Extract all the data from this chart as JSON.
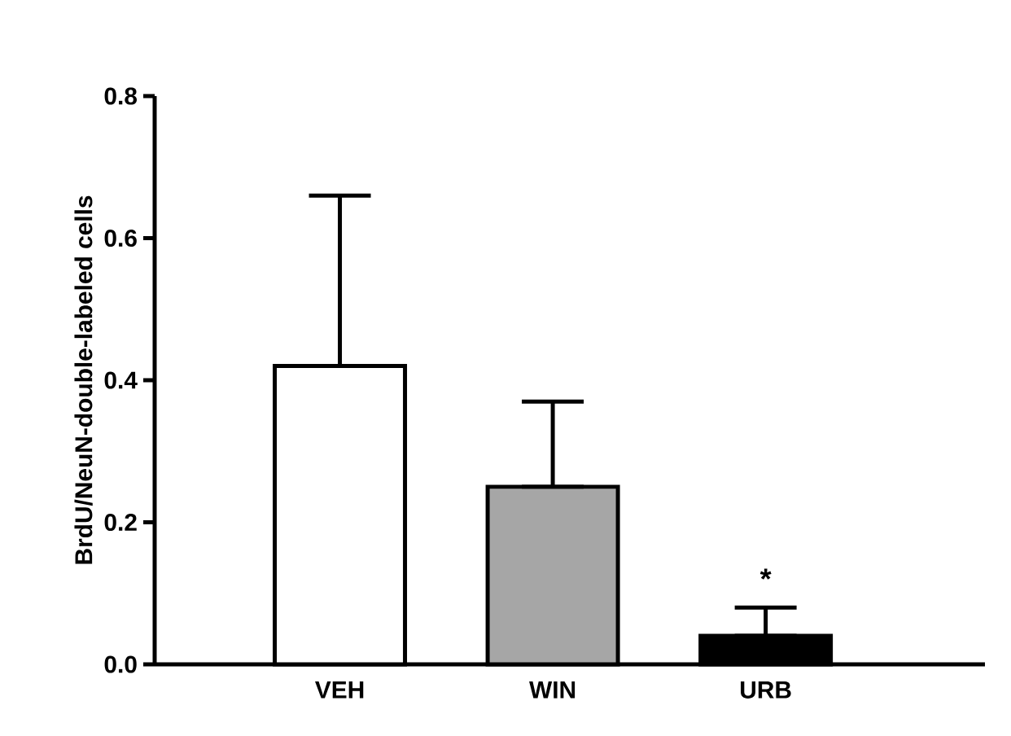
{
  "chart_data": {
    "type": "bar",
    "ylabel": "BrdU/NeuN-double-labeled cells",
    "categories": [
      "VEH",
      "WIN",
      "URB"
    ],
    "values": [
      0.42,
      0.25,
      0.04
    ],
    "colors": [
      "#ffffff",
      "#a6a6a6",
      "#000000"
    ],
    "errors": [
      [
        0.42,
        0.66
      ],
      [
        0.25,
        0.37
      ],
      [
        0.04,
        0.08
      ]
    ],
    "ylim": [
      0,
      0.8
    ],
    "yticks": [
      {
        "value": 0,
        "label": "0.0"
      },
      0.2,
      0.4,
      0.6,
      0.8
    ],
    "annotations": [
      "*"
    ],
    "grid": false
  }
}
